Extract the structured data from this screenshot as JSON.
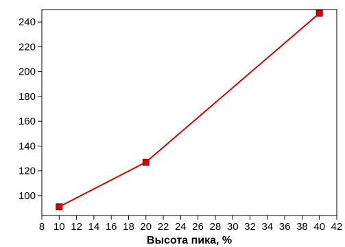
{
  "chart_data": {
    "type": "line",
    "xlabel": "Высота пика, %",
    "ylabel": "",
    "xlim": [
      8,
      42
    ],
    "ylim": [
      84,
      250
    ],
    "x_ticks": [
      "8",
      "10",
      "12",
      "14",
      "16",
      "18",
      "20",
      "22",
      "24",
      "26",
      "28",
      "30",
      "32",
      "34",
      "36",
      "38",
      "40",
      "42"
    ],
    "y_ticks": [
      "100",
      "120",
      "140",
      "160",
      "180",
      "200",
      "220",
      "240"
    ],
    "grid": false,
    "series": [
      {
        "x": [
          10,
          20,
          40
        ],
        "y": [
          91,
          127,
          247
        ]
      }
    ],
    "colors": {
      "line": "#e00000",
      "marker_fill": "#e00000",
      "marker_edge": "#7a0000",
      "axis": "#000000"
    }
  }
}
